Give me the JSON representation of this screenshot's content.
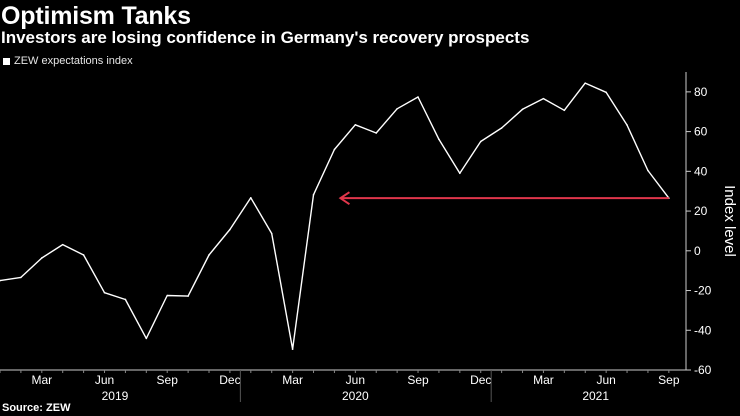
{
  "title": "Optimism Tanks",
  "subtitle": "Investors are losing confidence in Germany's recovery prospects",
  "legend_label": "ZEW expectations index",
  "source": "Source: ZEW",
  "colors": {
    "background": "#000000",
    "line": "#ffffff",
    "arrow": "#e0364b",
    "axis": "#cccccc"
  },
  "chart_data": {
    "type": "line",
    "title": "Optimism Tanks",
    "ylabel": "Index level",
    "ylim": [
      -60,
      90
    ],
    "yticks": [
      80,
      60,
      40,
      20,
      0,
      -20,
      -40,
      -60
    ],
    "month_ticks": [
      {
        "label": "Mar",
        "index": 2
      },
      {
        "label": "Jun",
        "index": 5
      },
      {
        "label": "Sep",
        "index": 8
      },
      {
        "label": "Dec",
        "index": 11
      },
      {
        "label": "Mar",
        "index": 14
      },
      {
        "label": "Jun",
        "index": 17
      },
      {
        "label": "Sep",
        "index": 20
      },
      {
        "label": "Dec",
        "index": 23
      },
      {
        "label": "Mar",
        "index": 26
      },
      {
        "label": "Jun",
        "index": 29
      },
      {
        "label": "Sep",
        "index": 32
      }
    ],
    "years": [
      {
        "label": "2019",
        "center_index": 5.5
      },
      {
        "label": "2020",
        "center_index": 17
      },
      {
        "label": "2021",
        "center_index": 28.5
      }
    ],
    "year_dividers": [
      11.5,
      23.5
    ],
    "series": [
      {
        "name": "ZEW expectations index",
        "start": "2019-01",
        "values": [
          -15.0,
          -13.4,
          -3.6,
          3.1,
          -2.1,
          -21.1,
          -24.5,
          -44.1,
          -22.5,
          -22.8,
          -2.1,
          10.7,
          26.7,
          8.7,
          -49.5,
          28.2,
          51.0,
          63.4,
          59.3,
          71.5,
          77.4,
          56.1,
          39.0,
          55.0,
          61.8,
          71.2,
          76.6,
          70.7,
          84.4,
          79.8,
          63.3,
          40.4,
          26.5
        ]
      }
    ],
    "annotation": {
      "type": "arrow",
      "value": 26.5,
      "from_index": 32,
      "to_index": 16
    }
  }
}
